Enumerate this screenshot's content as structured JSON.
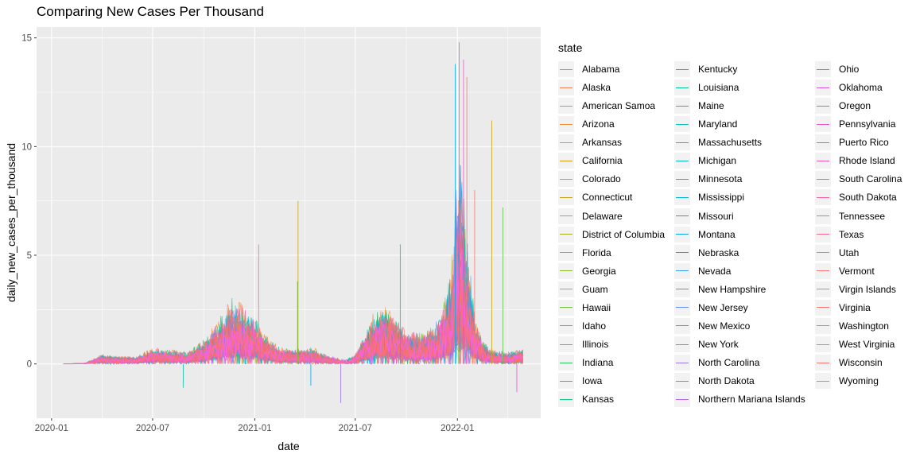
{
  "chart_data": {
    "type": "line",
    "title": "Comparing New Cases Per Thousand",
    "xlabel": "date",
    "ylabel": "daily_new_cases_per_thousand",
    "x_ticks": [
      "2020-01",
      "2020-07",
      "2021-01",
      "2021-07",
      "2022-01"
    ],
    "y_ticks": [
      0,
      5,
      10,
      15
    ],
    "ylim": [
      -2.5,
      15.5
    ],
    "xlim": [
      "2019-12-05",
      "2022-05-31"
    ],
    "x_range_data": [
      "2020-01-22",
      "2022-04-30"
    ],
    "grid": true,
    "legend_position": "right",
    "legend_title": "state",
    "series_note": "one daily series per state; values estimated from envelope of plotted lines",
    "envelope": {
      "dates": [
        "2020-01-22",
        "2020-03-01",
        "2020-04-01",
        "2020-05-01",
        "2020-06-01",
        "2020-07-01",
        "2020-08-01",
        "2020-09-01",
        "2020-10-01",
        "2020-11-01",
        "2020-11-20",
        "2020-12-10",
        "2021-01-01",
        "2021-01-20",
        "2021-02-15",
        "2021-03-15",
        "2021-04-15",
        "2021-05-15",
        "2021-06-15",
        "2021-07-01",
        "2021-08-01",
        "2021-08-20",
        "2021-09-01",
        "2021-10-01",
        "2021-11-01",
        "2021-12-01",
        "2021-12-20",
        "2022-01-01",
        "2022-01-10",
        "2022-01-20",
        "2022-02-01",
        "2022-02-15",
        "2022-03-01",
        "2022-04-01",
        "2022-04-30"
      ],
      "typical": [
        0.0,
        0.02,
        0.2,
        0.15,
        0.15,
        0.35,
        0.3,
        0.25,
        0.5,
        1.0,
        1.4,
        1.2,
        1.0,
        0.6,
        0.35,
        0.3,
        0.35,
        0.15,
        0.05,
        0.2,
        1.0,
        1.2,
        1.1,
        0.7,
        0.6,
        0.9,
        1.6,
        3.3,
        3.2,
        2.2,
        1.0,
        0.5,
        0.3,
        0.2,
        0.3
      ],
      "peak": [
        0.0,
        0.05,
        0.5,
        0.5,
        0.4,
        0.6,
        0.6,
        0.5,
        1.2,
        2.0,
        2.8,
        2.6,
        2.0,
        1.5,
        0.9,
        0.9,
        0.7,
        0.5,
        0.3,
        0.6,
        2.5,
        3.5,
        3.2,
        2.0,
        2.0,
        3.0,
        6.0,
        14.8,
        13.0,
        8.0,
        3.0,
        1.5,
        1.0,
        0.8,
        1.0
      ]
    },
    "spikes": [
      {
        "date": "2021-01-08",
        "value": 5.5
      },
      {
        "date": "2021-03-20",
        "value": 7.5
      },
      {
        "date": "2021-03-19",
        "value": 3.8
      },
      {
        "date": "2021-09-20",
        "value": 5.5
      },
      {
        "date": "2021-12-28",
        "value": 13.8
      },
      {
        "date": "2022-01-04",
        "value": 14.8
      },
      {
        "date": "2022-01-12",
        "value": 14.0
      },
      {
        "date": "2022-01-18",
        "value": 13.2
      },
      {
        "date": "2022-02-01",
        "value": 8.0
      },
      {
        "date": "2022-03-04",
        "value": 11.2
      },
      {
        "date": "2022-03-24",
        "value": 7.2
      },
      {
        "date": "2020-08-25",
        "value": -1.1
      },
      {
        "date": "2021-04-12",
        "value": -1.0
      },
      {
        "date": "2021-06-05",
        "value": -1.8
      },
      {
        "date": "2022-04-18",
        "value": -1.3
      }
    ]
  },
  "legend": {
    "title": "state",
    "items": [
      {
        "label": "Alabama",
        "color": "#F8766D"
      },
      {
        "label": "Alaska",
        "color": "#F67C56"
      },
      {
        "label": "American Samoa",
        "color": "#F2823F"
      },
      {
        "label": "Arizona",
        "color": "#EC8A2C"
      },
      {
        "label": "Arkansas",
        "color": "#E4911F"
      },
      {
        "label": "California",
        "color": "#DB9819"
      },
      {
        "label": "Colorado",
        "color": "#D19F19"
      },
      {
        "label": "Connecticut",
        "color": "#C6A51C"
      },
      {
        "label": "Delaware",
        "color": "#BAAB20"
      },
      {
        "label": "District of Columbia",
        "color": "#ADB025"
      },
      {
        "label": "Florida",
        "color": "#A0B52A"
      },
      {
        "label": "Georgia",
        "color": "#92BA30"
      },
      {
        "label": "Guam",
        "color": "#83BE37"
      },
      {
        "label": "Hawaii",
        "color": "#72C140"
      },
      {
        "label": "Idaho",
        "color": "#60C44A"
      },
      {
        "label": "Illinois",
        "color": "#4BC655"
      },
      {
        "label": "Indiana",
        "color": "#33C761"
      },
      {
        "label": "Iowa",
        "color": "#1CC86E"
      },
      {
        "label": "Kansas",
        "color": "#0CC87C"
      },
      {
        "label": "Kentucky",
        "color": "#05C88A"
      },
      {
        "label": "Louisiana",
        "color": "#00C797"
      },
      {
        "label": "Maine",
        "color": "#00C6A4"
      },
      {
        "label": "Maryland",
        "color": "#00C4B1"
      },
      {
        "label": "Massachusetts",
        "color": "#00C2BD"
      },
      {
        "label": "Michigan",
        "color": "#00BFC8"
      },
      {
        "label": "Minnesota",
        "color": "#00BBD2"
      },
      {
        "label": "Mississippi",
        "color": "#00B7DB"
      },
      {
        "label": "Missouri",
        "color": "#00B2E3"
      },
      {
        "label": "Montana",
        "color": "#00ACEA"
      },
      {
        "label": "Nebraska",
        "color": "#0EA5F0"
      },
      {
        "label": "Nevada",
        "color": "#2F9EF4"
      },
      {
        "label": "New Hampshire",
        "color": "#4C96F7"
      },
      {
        "label": "New Jersey",
        "color": "#648DF8"
      },
      {
        "label": "New Mexico",
        "color": "#7A84F8"
      },
      {
        "label": "New York",
        "color": "#8D7BF7"
      },
      {
        "label": "North Carolina",
        "color": "#9E72F4"
      },
      {
        "label": "North Dakota",
        "color": "#AE6AF0"
      },
      {
        "label": "Northern Mariana Islands",
        "color": "#BC63EB"
      },
      {
        "label": "Ohio",
        "color": "#C95CE5"
      },
      {
        "label": "Oklahoma",
        "color": "#D456DE"
      },
      {
        "label": "Oregon",
        "color": "#DE53D6"
      },
      {
        "label": "Pennsylvania",
        "color": "#E651CD"
      },
      {
        "label": "Puerto Rico",
        "color": "#ED52C3"
      },
      {
        "label": "Rhode Island",
        "color": "#F255B8"
      },
      {
        "label": "South Carolina",
        "color": "#F659AD"
      },
      {
        "label": "South Dakota",
        "color": "#F85FA1"
      },
      {
        "label": "Tennessee",
        "color": "#FA6595"
      },
      {
        "label": "Texas",
        "color": "#FA6B89"
      },
      {
        "label": "Utah",
        "color": "#FA707E"
      },
      {
        "label": "Vermont",
        "color": "#F97473"
      },
      {
        "label": "Virgin Islands",
        "color": "#F8766D"
      },
      {
        "label": "Virginia",
        "color": "#F8766D"
      },
      {
        "label": "Washington",
        "color": "#F8766D"
      },
      {
        "label": "West Virginia",
        "color": "#F8766D"
      },
      {
        "label": "Wisconsin",
        "color": "#F8766D"
      },
      {
        "label": "Wyoming",
        "color": "#F8766D"
      }
    ]
  },
  "colors": {
    "panel_background": "#EBEBEB",
    "grid_major": "#FFFFFF",
    "foreground_series": "#F564E3"
  }
}
